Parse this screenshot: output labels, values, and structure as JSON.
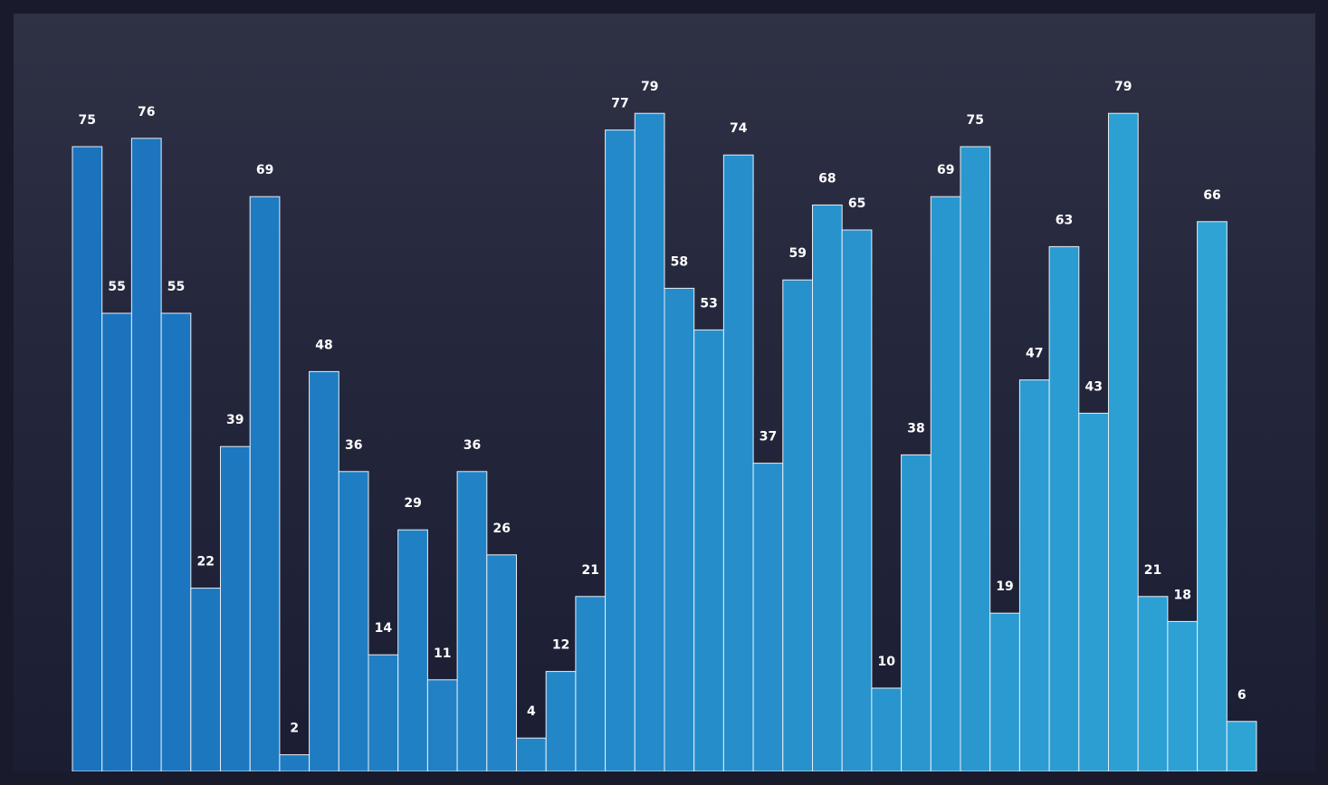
{
  "chart_data": {
    "type": "bar",
    "title": "",
    "xlabel": "",
    "ylabel": "",
    "ylim": [
      0,
      87
    ],
    "grid": false,
    "show_axes": false,
    "show_data_labels": true,
    "values": [
      75,
      55,
      76,
      55,
      22,
      39,
      69,
      2,
      48,
      36,
      14,
      29,
      11,
      36,
      26,
      4,
      12,
      21,
      77,
      79,
      58,
      53,
      74,
      37,
      59,
      68,
      65,
      10,
      38,
      69,
      75,
      19,
      47,
      63,
      43,
      79,
      21,
      18,
      66,
      6
    ],
    "colors": {
      "gradient_start": "#1b72bd",
      "gradient_end": "#2ea4d5",
      "bar_edge": "#e8eef5",
      "label": "#ffffff",
      "background_top": "#2f3145",
      "background_bottom": "#1b1e33",
      "page": "#191a2c"
    }
  }
}
